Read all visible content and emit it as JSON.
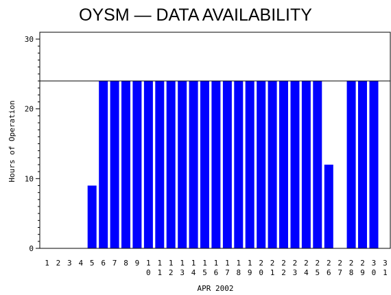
{
  "chart_data": {
    "type": "bar",
    "title": "OYSM — DATA AVAILABILITY",
    "xlabel": "APR 2002",
    "ylabel": "Hours of Operation",
    "ylim": [
      0,
      30
    ],
    "yticks": [
      0,
      10,
      20,
      30
    ],
    "categories": [
      "1",
      "2",
      "3",
      "4",
      "5",
      "6",
      "7",
      "8",
      "9",
      "10",
      "11",
      "12",
      "13",
      "14",
      "15",
      "16",
      "17",
      "18",
      "19",
      "20",
      "21",
      "22",
      "23",
      "24",
      "25",
      "26",
      "27",
      "28",
      "29",
      "30",
      "31"
    ],
    "values": [
      0,
      0,
      0,
      0,
      9,
      24,
      24,
      24,
      24,
      24,
      24,
      24,
      24,
      24,
      24,
      24,
      24,
      24,
      24,
      24,
      24,
      24,
      24,
      24,
      24,
      12,
      0,
      24,
      24,
      24,
      0
    ],
    "reference_line": 24,
    "bar_color": "#0000ff"
  }
}
